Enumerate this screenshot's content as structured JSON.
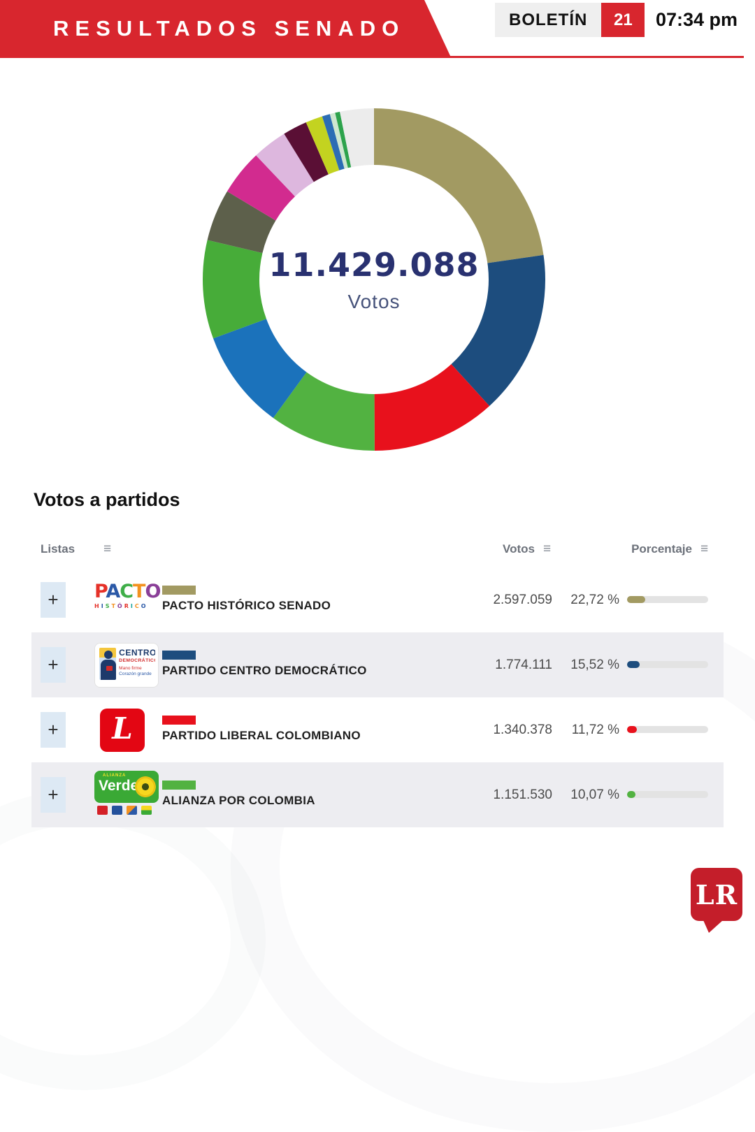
{
  "header": {
    "title": "RESULTADOS SENADO",
    "bulletin_label": "BOLETÍN",
    "bulletin_number": "21",
    "time": "07:34 pm",
    "accent_color": "#d8262e"
  },
  "chart_data": {
    "type": "pie",
    "subtype": "donut",
    "center_value": "11.429.088",
    "center_label": "Votos",
    "legend_position": "none",
    "segments": [
      {
        "label": "PACTO HISTÓRICO SENADO",
        "votes": "2.597.059",
        "pct": 22.72,
        "color": "#a29a62"
      },
      {
        "label": "PARTIDO CENTRO DEMOCRÁTICO",
        "votes": "1.774.111",
        "pct": 15.52,
        "color": "#1d4d7e"
      },
      {
        "label": "PARTIDO LIBERAL COLOMBIANO",
        "votes": "1.340.378",
        "pct": 11.72,
        "color": "#e8111c"
      },
      {
        "label": "ALIANZA POR COLOMBIA",
        "votes": "1.151.530",
        "pct": 10.07,
        "color": "#52b241"
      },
      {
        "label": "",
        "pct": 9.4,
        "color": "#1b72bb"
      },
      {
        "label": "",
        "pct": 9.3,
        "color": "#47ac39"
      },
      {
        "label": "",
        "pct": 4.9,
        "color": "#5d604b"
      },
      {
        "label": "",
        "pct": 4.3,
        "color": "#d22b8f"
      },
      {
        "label": "",
        "pct": 3.3,
        "color": "#ddb7de"
      },
      {
        "label": "",
        "pct": 2.3,
        "color": "#5a0f35"
      },
      {
        "label": "",
        "pct": 1.6,
        "color": "#c3d320"
      },
      {
        "label": "",
        "pct": 0.75,
        "color": "#2c6db4"
      },
      {
        "label": "",
        "pct": 0.5,
        "color": "#cfe7d0"
      },
      {
        "label": "",
        "pct": 0.45,
        "color": "#2da34c"
      },
      {
        "label": "",
        "pct": 3.2,
        "color": "#ececec"
      }
    ]
  },
  "table": {
    "title": "Votos a partidos",
    "columns": [
      "Listas",
      "Votos",
      "Porcentaje"
    ],
    "rows": [
      {
        "name": "PACTO HISTÓRICO SENADO",
        "votes": "2.597.059",
        "pct": "22,72 %",
        "pct_value": 22.72,
        "color": "#a29a62"
      },
      {
        "name": "PARTIDO CENTRO DEMOCRÁTICO",
        "votes": "1.774.111",
        "pct": "15,52 %",
        "pct_value": 15.52,
        "color": "#1d4d7e"
      },
      {
        "name": "PARTIDO LIBERAL COLOMBIANO",
        "votes": "1.340.378",
        "pct": "11,72 %",
        "pct_value": 11.72,
        "color": "#e8111c"
      },
      {
        "name": "ALIANZA POR COLOMBIA",
        "votes": "1.151.530",
        "pct": "10,07 %",
        "pct_value": 10.07,
        "color": "#52b241"
      }
    ]
  },
  "logos": {
    "pacto": {
      "word": "PACTO",
      "word_colors": [
        "#e53128",
        "#2b59a7",
        "#3fae49",
        "#f39220",
        "#8a3f98"
      ],
      "sub": "HISTÓRICO",
      "sub_colors": [
        "#e53128",
        "#2b59a7",
        "#3fae49",
        "#f39220",
        "#8a3f98",
        "#e53128",
        "#18a39b",
        "#f39220",
        "#2b59a7"
      ]
    },
    "centro": {
      "line1": "CENTRO",
      "line2": "DEMOCRÁTICO",
      "line3": "Mano firme",
      "line4": "Corazón grande"
    },
    "liberal": {
      "letter": "L"
    },
    "verde": {
      "top": "ALIANZA",
      "word": "Verde"
    }
  },
  "icons": {
    "sort": "≡",
    "expand": "+"
  },
  "branding": {
    "logo_text": "LR"
  }
}
